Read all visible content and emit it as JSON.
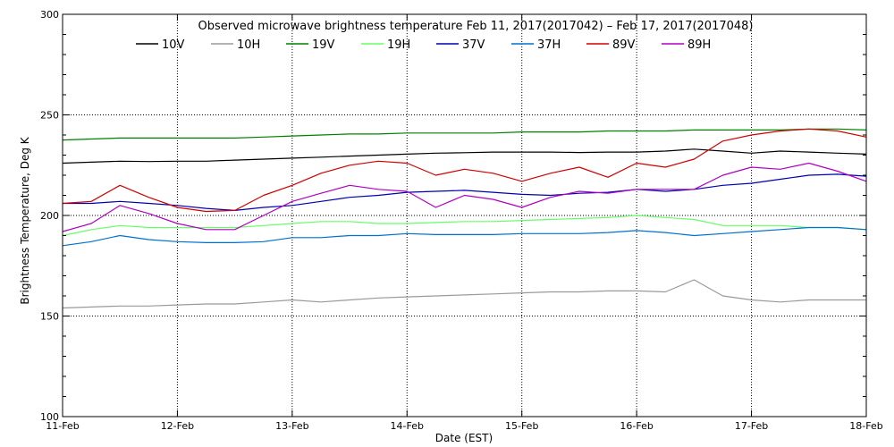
{
  "chart_data": {
    "type": "line",
    "title": "Observed microwave brightness temperature Feb 11, 2017(2017042) – Feb 17, 2017(2017048)",
    "xlabel": "Date (EST)",
    "ylabel": "Brightness Temperature, Deg K",
    "x_ticks": [
      "11-Feb",
      "12-Feb",
      "13-Feb",
      "14-Feb",
      "15-Feb",
      "16-Feb",
      "17-Feb",
      "18-Feb"
    ],
    "xlim_days": [
      11,
      18
    ],
    "ylim": [
      100,
      300
    ],
    "y_ticks": [
      100,
      150,
      200,
      250,
      300
    ],
    "grid": "dotted",
    "legend_position": "top",
    "x_days": [
      11.0,
      11.25,
      11.5,
      11.75,
      12.0,
      12.25,
      12.5,
      12.75,
      13.0,
      13.25,
      13.5,
      13.75,
      14.0,
      14.25,
      14.5,
      14.75,
      15.0,
      15.25,
      15.5,
      15.75,
      16.0,
      16.25,
      16.5,
      16.75,
      17.0,
      17.25,
      17.5,
      17.75,
      18.0
    ],
    "series": [
      {
        "name": "10V",
        "color": "#000000",
        "values": [
          226,
          226.5,
          227,
          226.8,
          227,
          227,
          227.5,
          228,
          228.5,
          229,
          229.5,
          230,
          230.5,
          231,
          231.2,
          231.5,
          231.5,
          231.5,
          231.3,
          231.5,
          231.5,
          232,
          233,
          232,
          231,
          232,
          231.5,
          231,
          230.5
        ]
      },
      {
        "name": "10H",
        "color": "#9a9a9a",
        "values": [
          154,
          154.5,
          155,
          155,
          155.5,
          156,
          156,
          157,
          158,
          157,
          158,
          159,
          159.5,
          160,
          160.5,
          161,
          161.5,
          162,
          162,
          162.5,
          162.5,
          162,
          168,
          160,
          158,
          157,
          158,
          158,
          158
        ]
      },
      {
        "name": "19V",
        "color": "#008000",
        "values": [
          237.5,
          238,
          238.5,
          238.5,
          238.5,
          238.5,
          238.5,
          239,
          239.5,
          240,
          240.5,
          240.5,
          241,
          241,
          241,
          241,
          241.5,
          241.5,
          241.5,
          242,
          242,
          242,
          242.5,
          242.5,
          242.5,
          242.5,
          243,
          243,
          242.5
        ]
      },
      {
        "name": "19H",
        "color": "#66ff66",
        "values": [
          190,
          193,
          195,
          194,
          194,
          194,
          194,
          195,
          196,
          197,
          197,
          196,
          196,
          196.5,
          197,
          197,
          197.5,
          198,
          198.5,
          199,
          200,
          199,
          198,
          195,
          195,
          195,
          194,
          194,
          193
        ]
      },
      {
        "name": "37V",
        "color": "#0000b0",
        "values": [
          206,
          206,
          207,
          206,
          205,
          203.5,
          202.5,
          204,
          205,
          207,
          209,
          210,
          211.5,
          212,
          212.5,
          211.5,
          210.5,
          210,
          211,
          211.5,
          213,
          212,
          213,
          215,
          216,
          218,
          220,
          220.5,
          219.5
        ]
      },
      {
        "name": "37H",
        "color": "#0070d0",
        "values": [
          185,
          187,
          190,
          188,
          187,
          186.5,
          186.5,
          187,
          189,
          189,
          190,
          190,
          191,
          190.5,
          190.5,
          190.5,
          191,
          191,
          191,
          191.5,
          192.5,
          191.5,
          190,
          191,
          192,
          193,
          194,
          194,
          193
        ]
      },
      {
        "name": "89V",
        "color": "#d00000",
        "values": [
          206,
          207,
          215,
          209,
          204,
          202,
          202.5,
          210,
          215,
          221,
          225,
          227,
          226,
          220,
          223,
          221,
          217,
          221,
          224,
          219,
          226,
          224,
          228,
          237,
          240,
          242,
          243,
          242,
          239
        ]
      },
      {
        "name": "89H",
        "color": "#b000c0",
        "values": [
          192,
          196,
          205,
          201,
          196,
          193,
          193,
          200,
          207,
          211,
          215,
          213,
          212,
          204,
          210,
          208,
          204,
          209,
          212,
          211,
          213,
          213,
          213,
          220,
          224,
          223,
          226,
          222,
          217
        ]
      }
    ]
  }
}
